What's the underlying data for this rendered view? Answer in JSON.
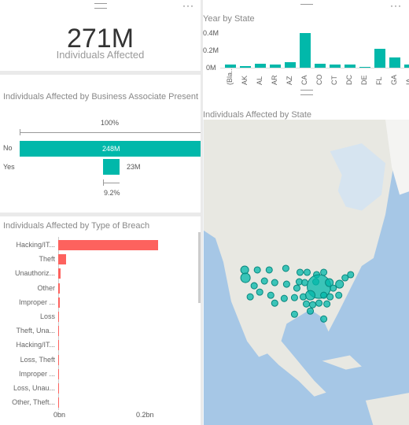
{
  "kpi": {
    "value": "271M",
    "label": "Individuals Affected"
  },
  "business_associate": {
    "title": "Individuals Affected by Business Associate Present",
    "top_pct": "100%",
    "bottom_pct": "9.2%",
    "rows": [
      {
        "label": "No",
        "value_label": "248M"
      },
      {
        "label": "Yes",
        "value_label": "23M"
      }
    ]
  },
  "breach_type": {
    "title": "Individuals Affected by Type of Breach",
    "axis_ticks": [
      "0bn",
      "0.2bn"
    ],
    "categories": [
      "Hacking/IT...",
      "Theft",
      "Unauthoriz...",
      "Other",
      "Improper ...",
      "Loss",
      "Theft, Una...",
      "Hacking/IT...",
      "Loss, Theft",
      "Improper ...",
      "Loss, Unau...",
      "Other, Theft..."
    ]
  },
  "state_chart": {
    "title": "Year by State",
    "y_ticks": [
      "0.4M",
      "0.2M",
      "0M"
    ],
    "states": [
      "(Bla...",
      "AK",
      "AL",
      "AR",
      "AZ",
      "CA",
      "CO",
      "CT",
      "DC",
      "DE",
      "FL",
      "GA",
      "IA"
    ]
  },
  "map": {
    "title": "Individuals Affected by State"
  },
  "colors": {
    "teal": "#01b8aa",
    "red": "#fd625e",
    "map_water": "#a6c7e6",
    "map_land": "#e6e6e0"
  },
  "chart_data": [
    {
      "type": "bar",
      "title": "Individuals Affected by Business Associate Present",
      "categories": [
        "No",
        "Yes"
      ],
      "values": [
        248,
        23
      ],
      "unit": "M"
    },
    {
      "type": "bar",
      "title": "Individuals Affected by Type of Breach",
      "categories": [
        "Hacking/IT...",
        "Theft",
        "Unauthoriz...",
        "Other",
        "Improper ...",
        "Loss",
        "Theft, Una...",
        "Hacking/IT...",
        "Loss, Theft",
        "Improper ...",
        "Loss, Unau...",
        "Other, Theft..."
      ],
      "values": [
        0.235,
        0.018,
        0.006,
        0.003,
        0.003,
        0.002,
        0.002,
        0.002,
        0.001,
        0.001,
        0.001,
        0.001
      ],
      "xlim": [
        0,
        0.3
      ],
      "unit": "bn"
    },
    {
      "type": "bar",
      "title": "Year by State",
      "categories": [
        "(Bla...",
        "AK",
        "AL",
        "AR",
        "AZ",
        "CA",
        "CO",
        "CT",
        "DC",
        "DE",
        "FL",
        "GA",
        "IA"
      ],
      "values": [
        0.03,
        0.02,
        0.04,
        0.03,
        0.06,
        0.36,
        0.04,
        0.03,
        0.03,
        0.01,
        0.2,
        0.11,
        0.03
      ],
      "ylim": [
        0,
        0.4
      ],
      "unit": "M"
    }
  ]
}
